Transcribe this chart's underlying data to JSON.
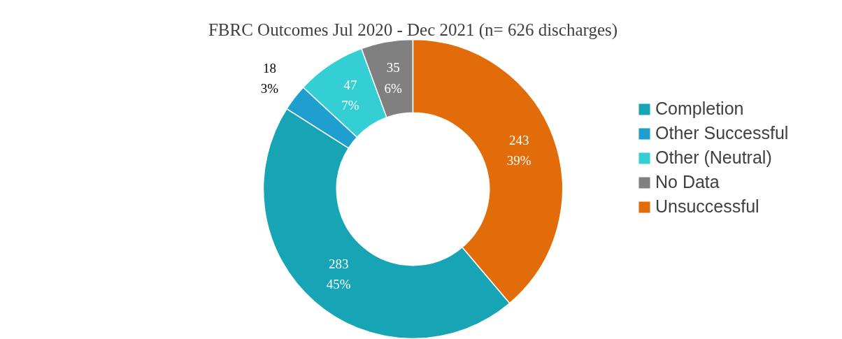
{
  "chart_data": {
    "type": "donut",
    "title": "FBRC Outcomes Jul 2020 - Dec 2021 (n= 626 discharges)",
    "categories": [
      "Completion",
      "Other Successful",
      "Other (Neutral)",
      "No Data",
      "Unsuccessful"
    ],
    "values": [
      283,
      18,
      47,
      35,
      243
    ],
    "value_labels": [
      "283\n45%",
      "18\n3%",
      "47\n7%",
      "35\n6%",
      "243\n39%"
    ],
    "colors": [
      "#17a5b5",
      "#1f9fd0",
      "#33cfd4",
      "#808080",
      "#e36c0a"
    ],
    "legend": "right"
  }
}
